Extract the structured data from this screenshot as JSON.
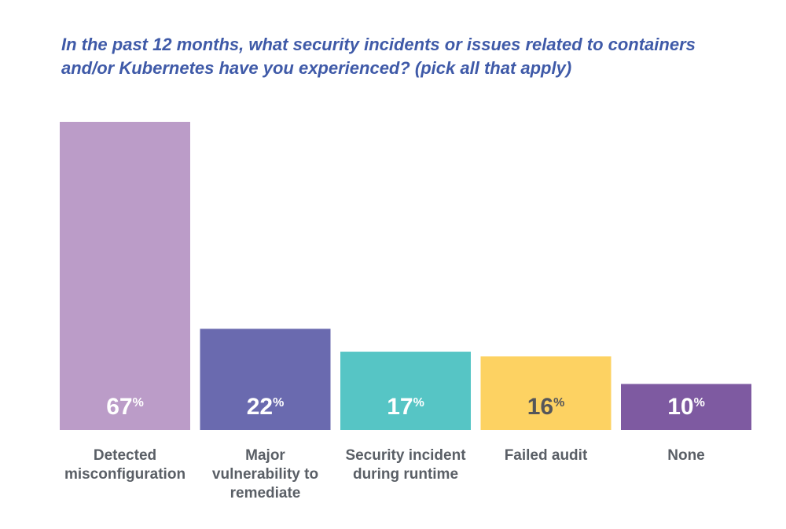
{
  "chart_data": {
    "type": "bar",
    "title_lines": [
      "In the past 12 months, what security incidents or issues related to containers",
      "and/or Kubernetes have you experienced? (pick all that apply)"
    ],
    "unit": "%",
    "categories": [
      [
        "Detected",
        "misconfiguration"
      ],
      [
        "Major",
        "vulnerability to",
        "remediate"
      ],
      [
        "Security incident",
        "during runtime"
      ],
      [
        "Failed audit"
      ],
      [
        "None"
      ]
    ],
    "values": [
      67,
      22,
      17,
      16,
      10
    ],
    "value_labels": [
      "67",
      "22",
      "17",
      "16",
      "10"
    ],
    "colors": [
      "#bb9cc8",
      "#6a6aaf",
      "#56c5c5",
      "#fdd262",
      "#7e5aa1"
    ],
    "label_colors": [
      "#ffffff",
      "#ffffff",
      "#ffffff",
      "#55565a",
      "#ffffff"
    ],
    "ylim": [
      0,
      67
    ],
    "grid": false,
    "legend": "none"
  }
}
